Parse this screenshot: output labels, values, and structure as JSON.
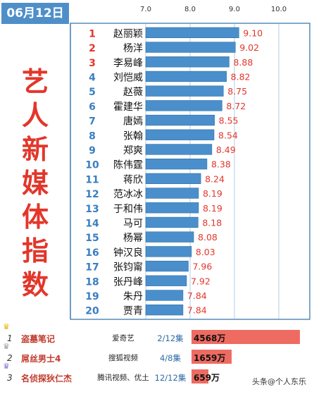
{
  "date": "06月12日",
  "vertical_title": [
    "艺",
    "人",
    "新",
    "媒",
    "体",
    "指",
    "数"
  ],
  "chart_data": {
    "type": "bar",
    "orientation": "horizontal",
    "xlim": [
      7.0,
      10.0
    ],
    "ticks": [
      "7.0",
      "8.0",
      "9.0",
      "10.0"
    ],
    "tick_values": [
      7.0,
      8.0,
      9.0,
      10.0
    ],
    "grid": true,
    "colors": {
      "bar": "#4a8fcb",
      "bar_border": "#2d6ea5",
      "rank_top3": "#e3362b",
      "rank": "#3a7ec0",
      "value": "#e3362b",
      "grid": "#9fc3e3",
      "frame": "#2d6ea5"
    },
    "rows": [
      {
        "rank": "1",
        "name": "赵丽颖",
        "value": 9.1,
        "label": "9.10"
      },
      {
        "rank": "2",
        "name": "杨洋",
        "value": 9.02,
        "label": "9.02"
      },
      {
        "rank": "3",
        "name": "李易峰",
        "value": 8.88,
        "label": "8.88"
      },
      {
        "rank": "4",
        "name": "刘恺威",
        "value": 8.82,
        "label": "8.82"
      },
      {
        "rank": "5",
        "name": "赵薇",
        "value": 8.75,
        "label": "8.75"
      },
      {
        "rank": "6",
        "name": "霍建华",
        "value": 8.72,
        "label": "8.72"
      },
      {
        "rank": "7",
        "name": "唐嫣",
        "value": 8.55,
        "label": "8.55"
      },
      {
        "rank": "8",
        "name": "张翰",
        "value": 8.54,
        "label": "8.54"
      },
      {
        "rank": "9",
        "name": "郑爽",
        "value": 8.49,
        "label": "8.49"
      },
      {
        "rank": "10",
        "name": "陈伟霆",
        "value": 8.38,
        "label": "8.38"
      },
      {
        "rank": "11",
        "name": "蒋欣",
        "value": 8.24,
        "label": "8.24"
      },
      {
        "rank": "12",
        "name": "范冰冰",
        "value": 8.19,
        "label": "8.19"
      },
      {
        "rank": "13",
        "name": "于和伟",
        "value": 8.19,
        "label": "8.19"
      },
      {
        "rank": "14",
        "name": "马可",
        "value": 8.18,
        "label": "8.18"
      },
      {
        "rank": "15",
        "name": "杨幂",
        "value": 8.08,
        "label": "8.08"
      },
      {
        "rank": "16",
        "name": "钟汉良",
        "value": 8.03,
        "label": "8.03"
      },
      {
        "rank": "17",
        "name": "张钧甯",
        "value": 7.96,
        "label": "7.96"
      },
      {
        "rank": "18",
        "name": "张丹峰",
        "value": 7.92,
        "label": "7.92"
      },
      {
        "rank": "19",
        "name": "朱丹",
        "value": 7.84,
        "label": "7.84"
      },
      {
        "rank": "20",
        "name": "贾青",
        "value": 7.84,
        "label": "7.84"
      }
    ]
  },
  "shows": [
    {
      "rank": "1",
      "crown_color": "#e8b300",
      "title": "盗墓笔记",
      "platform": "爱奇艺",
      "episodes": "2/12集",
      "views": "4568万",
      "share": 1.0
    },
    {
      "rank": "2",
      "crown_color": "#9a9a9a",
      "title": "屌丝男士4",
      "platform": "搜狐视频",
      "episodes": "4/8集",
      "views": "1659万",
      "share": 0.363
    },
    {
      "rank": "3",
      "crown_color": "#7b7bd6",
      "title": "名侦探狄仁杰",
      "platform": "腾讯视频、优土",
      "episodes": "12/12集",
      "views": "659万",
      "share": 0.144
    }
  ],
  "watermark": "头条@个人东乐"
}
